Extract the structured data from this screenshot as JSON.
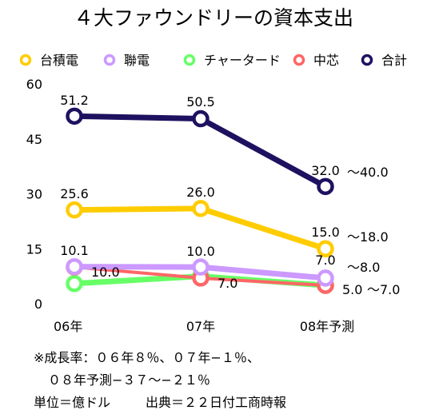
{
  "chart_data": {
    "type": "line",
    "title": "４大ファウンドリーの資本支出",
    "categories": [
      "06年",
      "07年",
      "08年予測"
    ],
    "ylim": [
      0,
      60
    ],
    "yticks": [
      0,
      15,
      30,
      45,
      60
    ],
    "grid": false,
    "legend_position": "top",
    "series": [
      {
        "name": "台積電",
        "color": "#ffcc00",
        "values": [
          25.6,
          26.0,
          15.0
        ],
        "labels": [
          "25.6",
          "26.0",
          "15.0"
        ],
        "range_label": "～18.0"
      },
      {
        "name": "聯電",
        "color": "#cc99ff",
        "values": [
          10.1,
          10.0,
          7.0
        ],
        "labels": [
          "10.1",
          "10.0",
          "7.0"
        ],
        "range_label": "～8.0"
      },
      {
        "name": "チャータード",
        "color": "#66ff66",
        "values": [
          5.5,
          7.5,
          5.0
        ],
        "labels": [
          "",
          "",
          ""
        ],
        "range_label": ""
      },
      {
        "name": "中芯",
        "color": "#ff6666",
        "values": [
          10.0,
          7.0,
          5.0
        ],
        "labels": [
          "10.0",
          "7.0",
          "5.0"
        ],
        "range_label": "～7.0"
      },
      {
        "name": "合計",
        "color": "#1e1160",
        "values": [
          51.2,
          50.5,
          32.0
        ],
        "labels": [
          "51.2",
          "50.5",
          "32.0"
        ],
        "range_label": "～40.0"
      }
    ]
  },
  "notes": {
    "line1": "※成長率：０６年８％、０７年−１％、",
    "line2": "０８年予測−３７～−２１％",
    "unit": "単位＝億ドル",
    "source": "出典＝２２日付工商時報"
  }
}
